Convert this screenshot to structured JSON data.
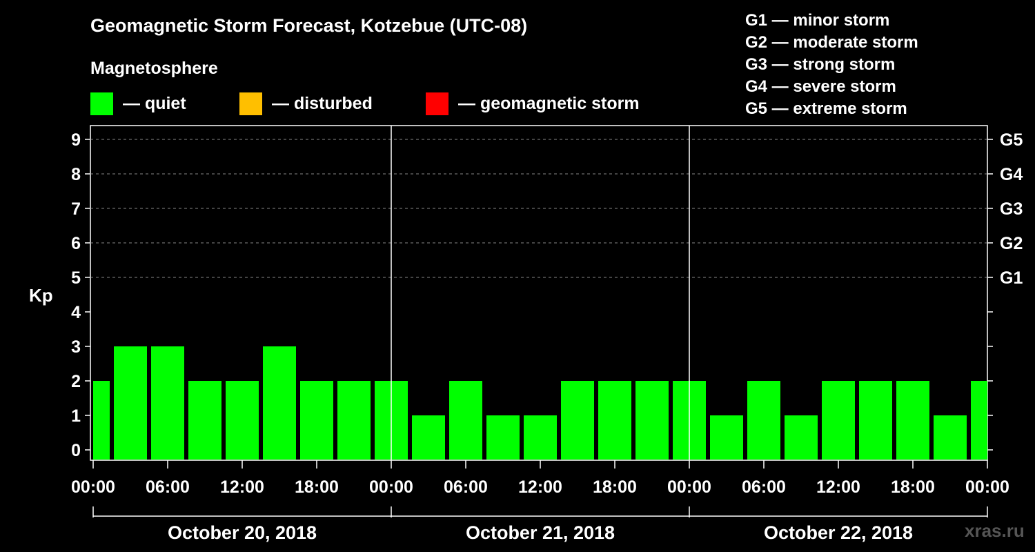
{
  "chart_data": {
    "type": "bar",
    "title": "Geomagnetic Storm Forecast, Kotzebue (UTC-08)",
    "subtitle": "Magnetosphere",
    "ylabel": "Kp",
    "ylim": [
      0,
      9
    ],
    "y_ticks": [
      "0",
      "1",
      "2",
      "3",
      "4",
      "5",
      "6",
      "7",
      "8",
      "9"
    ],
    "right_ticks": [
      {
        "kp": 5,
        "label": "G1"
      },
      {
        "kp": 6,
        "label": "G2"
      },
      {
        "kp": 7,
        "label": "G3"
      },
      {
        "kp": 8,
        "label": "G4"
      },
      {
        "kp": 9,
        "label": "G5"
      }
    ],
    "x_ticks": [
      "00:00",
      "06:00",
      "12:00",
      "18:00",
      "00:00",
      "06:00",
      "12:00",
      "18:00",
      "00:00",
      "06:00",
      "12:00",
      "18:00",
      "00:00"
    ],
    "x_tick_hours": [
      0,
      6,
      12,
      18,
      24,
      30,
      36,
      42,
      48,
      54,
      60,
      66,
      72
    ],
    "day_labels": [
      "October 20, 2018",
      "October 21, 2018",
      "October 22, 2018"
    ],
    "day_boundaries_hours": [
      24,
      48
    ],
    "bar_interval_hours": 3,
    "x_range_hours": [
      0,
      72
    ],
    "values": [
      2,
      3,
      3,
      2,
      2,
      3,
      2,
      2,
      2,
      1,
      2,
      1,
      1,
      2,
      2,
      2,
      2,
      1,
      2,
      1,
      2,
      2,
      2,
      1,
      2
    ],
    "grid": true,
    "legend": [
      {
        "label": "— quiet",
        "color": "#00ff00"
      },
      {
        "label": "— disturbed",
        "color": "#ffbf00"
      },
      {
        "label": "— geomagnetic storm",
        "color": "#ff0000"
      }
    ],
    "storm_scale": [
      "G1 — minor storm",
      "G2 — moderate storm",
      "G3 — strong storm",
      "G4 — severe storm",
      "G5 — extreme storm"
    ],
    "watermark": "xras.ru"
  }
}
